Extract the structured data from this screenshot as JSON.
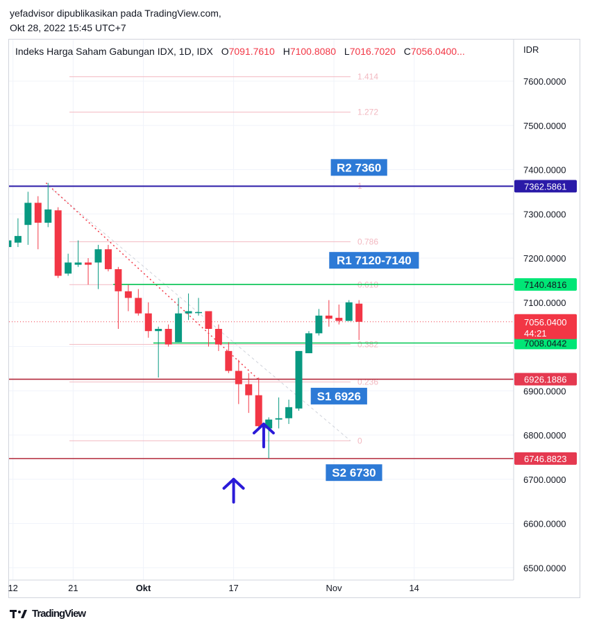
{
  "attribution": {
    "line1": "yefadvisor dipublikasikan pada TradingView.com,",
    "line2": "Okt 28, 2022 15:45 UTC+7"
  },
  "legend": {
    "symbol": "Indeks Harga Saham Gabungan IDX, 1D, IDX",
    "o_label": "O",
    "o_value": "7091.7610",
    "h_label": "H",
    "h_value": "7100.8080",
    "l_label": "L",
    "l_value": "7016.7020",
    "c_label": "C",
    "c_value": "7056.0400..."
  },
  "footer": {
    "logo_text": "TradingView"
  },
  "colors": {
    "up": "#089981",
    "down": "#f23645",
    "resistance_top": "#2a1aa8",
    "green_level": "#00c853",
    "red_level": "#b2283a",
    "fib": "#f2b8c0",
    "label_blue": "#2962ff",
    "arrow": "#2a1ad8"
  },
  "chart_data": {
    "type": "candlestick",
    "currency": "IDR",
    "ylim": [
      6450,
      7690
    ],
    "y_ticks": [
      "7600.0000",
      "7500.0000",
      "7400.0000",
      "7300.0000",
      "7200.0000",
      "7100.0000",
      "6900.0000",
      "6800.0000",
      "6700.0000",
      "6600.0000",
      "6500.0000"
    ],
    "y_tick_values": [
      7600,
      7500,
      7400,
      7300,
      7200,
      7100,
      6900,
      6800,
      6700,
      6600,
      6500
    ],
    "x_ticks": [
      {
        "label": "12",
        "i": 1.5
      },
      {
        "label": "21",
        "i": 7.5
      },
      {
        "label": "Okt",
        "i": 14.5,
        "bold": true
      },
      {
        "label": "17",
        "i": 23.5
      },
      {
        "label": "Nov",
        "i": 33.5
      },
      {
        "label": "14",
        "i": 41.5
      }
    ],
    "candles": [
      {
        "o": 7180,
        "h": 7220,
        "l": 7180,
        "c": 7220
      },
      {
        "o": 7225,
        "h": 7270,
        "l": 7205,
        "c": 7240
      },
      {
        "o": 7235,
        "h": 7290,
        "l": 7225,
        "c": 7250
      },
      {
        "o": 7275,
        "h": 7350,
        "l": 7230,
        "c": 7325
      },
      {
        "o": 7325,
        "h": 7340,
        "l": 7220,
        "c": 7280
      },
      {
        "o": 7280,
        "h": 7370,
        "l": 7270,
        "c": 7310
      },
      {
        "o": 7308,
        "h": 7315,
        "l": 7155,
        "c": 7160
      },
      {
        "o": 7165,
        "h": 7210,
        "l": 7160,
        "c": 7190
      },
      {
        "o": 7185,
        "h": 7240,
        "l": 7180,
        "c": 7190
      },
      {
        "o": 7190,
        "h": 7200,
        "l": 7140,
        "c": 7185
      },
      {
        "o": 7190,
        "h": 7230,
        "l": 7130,
        "c": 7220
      },
      {
        "o": 7220,
        "h": 7230,
        "l": 7170,
        "c": 7175
      },
      {
        "o": 7175,
        "h": 7180,
        "l": 7040,
        "c": 7125
      },
      {
        "o": 7125,
        "h": 7140,
        "l": 7080,
        "c": 7110
      },
      {
        "o": 7110,
        "h": 7130,
        "l": 7070,
        "c": 7075
      },
      {
        "o": 7075,
        "h": 7100,
        "l": 7020,
        "c": 7035
      },
      {
        "o": 7035,
        "h": 7045,
        "l": 6930,
        "c": 7040
      },
      {
        "o": 7040,
        "h": 7050,
        "l": 7000,
        "c": 7005
      },
      {
        "o": 7010,
        "h": 7110,
        "l": 7010,
        "c": 7075
      },
      {
        "o": 7075,
        "h": 7120,
        "l": 7060,
        "c": 7080
      },
      {
        "o": 7078,
        "h": 7110,
        "l": 7070,
        "c": 7078
      },
      {
        "o": 7080,
        "h": 7080,
        "l": 7000,
        "c": 7040
      },
      {
        "o": 7040,
        "h": 7050,
        "l": 6990,
        "c": 7005
      },
      {
        "o": 6990,
        "h": 7010,
        "l": 6940,
        "c": 6945
      },
      {
        "o": 6945,
        "h": 6970,
        "l": 6870,
        "c": 6915
      },
      {
        "o": 6915,
        "h": 6940,
        "l": 6850,
        "c": 6890
      },
      {
        "o": 6890,
        "h": 6930,
        "l": 6815,
        "c": 6820
      },
      {
        "o": 6815,
        "h": 6840,
        "l": 6747,
        "c": 6835
      },
      {
        "o": 6835,
        "h": 6885,
        "l": 6815,
        "c": 6838
      },
      {
        "o": 6838,
        "h": 6880,
        "l": 6825,
        "c": 6863
      },
      {
        "o": 6860,
        "h": 6990,
        "l": 6855,
        "c": 6990
      },
      {
        "o": 6985,
        "h": 7035,
        "l": 6985,
        "c": 7030
      },
      {
        "o": 7030,
        "h": 7085,
        "l": 7025,
        "c": 7070
      },
      {
        "o": 7070,
        "h": 7105,
        "l": 7045,
        "c": 7063
      },
      {
        "o": 7065,
        "h": 7095,
        "l": 7050,
        "c": 7058
      },
      {
        "o": 7058,
        "h": 7105,
        "l": 7058,
        "c": 7100
      },
      {
        "o": 7097,
        "h": 7105,
        "l": 7015,
        "c": 7056
      }
    ],
    "fib_levels": [
      {
        "label": "1.414",
        "value": 7610
      },
      {
        "label": "1.272",
        "value": 7530
      },
      {
        "label": "1",
        "value": 7363
      },
      {
        "label": "0.786",
        "value": 7237
      },
      {
        "label": "0.618",
        "value": 7140
      },
      {
        "label": "0.382",
        "value": 7005
      },
      {
        "label": "0.236",
        "value": 6920
      },
      {
        "label": "0",
        "value": 6787
      }
    ],
    "horizontal_levels": [
      {
        "value": 7362.5861,
        "color": "#2a1aa8",
        "label": "7362.5861"
      },
      {
        "value": 7140.4816,
        "color": "#00c853",
        "label": "7140.4816",
        "from_i": 11.5
      },
      {
        "value": 7008.0442,
        "color": "#00c853",
        "label": "7008.0442",
        "from_i": 15.5
      },
      {
        "value": 6926.1886,
        "color": "#b2283a",
        "label": "6926.1886"
      },
      {
        "value": 6746.8823,
        "color": "#b2283a",
        "label": "6746.8823"
      }
    ],
    "last_price": {
      "value": 7056.04,
      "label": "7056.0400",
      "countdown": "44:21"
    },
    "annotations": [
      {
        "text": "R2 7360",
        "i": 36.0,
        "value": 7405
      },
      {
        "text": "R1 7120-7140",
        "i": 37.5,
        "value": 7195
      },
      {
        "text": "S1 6926",
        "i": 34.0,
        "value": 6888
      },
      {
        "text": "S2 6730",
        "i": 35.5,
        "value": 6715
      }
    ],
    "arrows": [
      {
        "i": 23.5,
        "value": 6700
      },
      {
        "i": 26.5,
        "value": 6825
      }
    ],
    "trendline": {
      "from_i": 4.8,
      "from_value": 7370,
      "to_i": 26,
      "to_value": 6925
    }
  }
}
